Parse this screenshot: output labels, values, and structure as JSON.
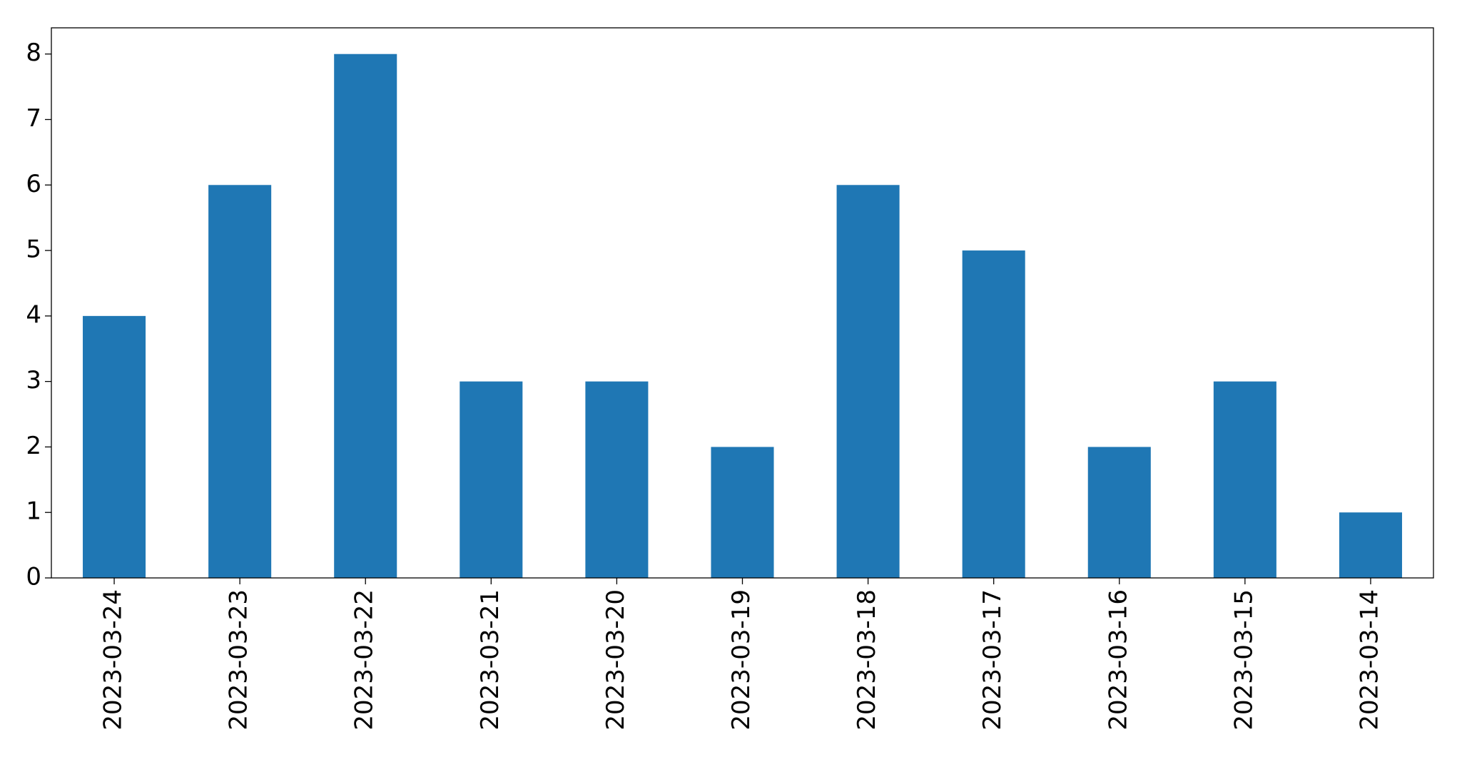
{
  "chart_data": {
    "type": "bar",
    "categories": [
      "2023-03-24",
      "2023-03-23",
      "2023-03-22",
      "2023-03-21",
      "2023-03-20",
      "2023-03-19",
      "2023-03-18",
      "2023-03-17",
      "2023-03-16",
      "2023-03-15",
      "2023-03-14"
    ],
    "values": [
      4,
      6,
      8,
      3,
      3,
      2,
      6,
      5,
      2,
      3,
      1
    ],
    "color": "#1f77b4",
    "ylim": [
      0,
      8.4
    ],
    "yticks": [
      0,
      1,
      2,
      3,
      4,
      5,
      6,
      7,
      8
    ],
    "grid": false
  }
}
